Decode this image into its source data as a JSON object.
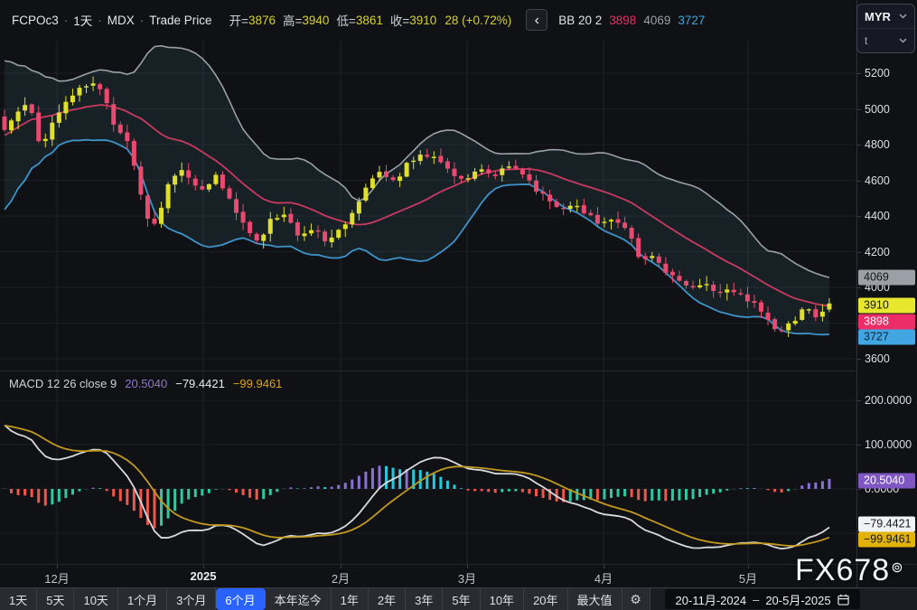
{
  "header": {
    "symbol": "FCPOc3",
    "separator": "·",
    "interval": "1天",
    "exchange": "MDX",
    "price_type": "Trade Price",
    "ohlc": {
      "open_label": "开=",
      "open": "3876",
      "high_label": "高=",
      "high": "3940",
      "low_label": "低=",
      "low": "3861",
      "close_label": "收=",
      "close": "3910",
      "change": "28 (+0.72%)"
    },
    "back_button": "‹",
    "bb": {
      "label": "BB 20 2",
      "mid": "3898",
      "upper": "4069",
      "lower": "3727"
    }
  },
  "symbol_widget": {
    "currency": "MYR",
    "unit": "t"
  },
  "price_axis": {
    "labels": [
      [
        "5200",
        81
      ],
      [
        "5000",
        121
      ],
      [
        "4800",
        160
      ],
      [
        "4600",
        200
      ],
      [
        "4400",
        239
      ],
      [
        "4200",
        279
      ],
      [
        "4000",
        318
      ],
      [
        "3800",
        358
      ],
      [
        "3600",
        397
      ]
    ],
    "badges": [
      [
        "4069",
        307,
        "#9aa0a6",
        "#14171c"
      ],
      [
        "3910",
        338,
        "#e7e72e",
        "#14171c"
      ],
      [
        "3898",
        356,
        "#ed2d68",
        "#ffffff"
      ],
      [
        "3727",
        373,
        "#41a6e1",
        "#0c2330"
      ]
    ]
  },
  "macd_panel": {
    "title": "MACD 12 26 close 9",
    "hist_value": "20.5040",
    "macd_value": "−79.4421",
    "signal_value": "−99.9461",
    "axis_labels": [
      [
        "200.0000",
        443
      ],
      [
        "100.0000",
        492
      ],
      [
        "0.0000",
        541
      ]
    ],
    "badges": [
      [
        "20.5040",
        532,
        "#7e57c2",
        "#ffffff"
      ],
      [
        "−79.4421",
        580,
        "#f1f2f4",
        "#14171c"
      ],
      [
        "−99.9461",
        597,
        "#e2b30b",
        "#14171c"
      ]
    ]
  },
  "time_axis": {
    "labels": [
      [
        "12月",
        63,
        0
      ],
      [
        "2025",
        225,
        1
      ],
      [
        "2月",
        377,
        0
      ],
      [
        "3月",
        517,
        0
      ],
      [
        "4月",
        668,
        0
      ],
      [
        "5月",
        828,
        0
      ]
    ]
  },
  "watermark": {
    "text": "FX678",
    "mark": "⊚"
  },
  "toolbar": {
    "ranges": [
      {
        "label": "1天"
      },
      {
        "label": "5天"
      },
      {
        "label": "10天"
      },
      {
        "label": "1个月"
      },
      {
        "label": "3个月"
      },
      {
        "label": "6个月",
        "active": true
      },
      {
        "label": "本年迄今"
      },
      {
        "label": "1年"
      },
      {
        "label": "2年"
      },
      {
        "label": "3年"
      },
      {
        "label": "5年"
      },
      {
        "label": "10年"
      },
      {
        "label": "20年"
      },
      {
        "label": "最大值"
      }
    ],
    "settings_icon": "⚙",
    "date_range": {
      "start": "20-11月-2024",
      "separator": "–",
      "end": "20-5月-2025"
    }
  },
  "chart_data": {
    "type": "candlestick",
    "symbol": "FCPOc3",
    "interval": "1天",
    "exchange": "MDX",
    "currency": "MYR",
    "unit": "t",
    "last_bar": {
      "open": 3876,
      "high": 3940,
      "low": 3861,
      "close": 3910,
      "change": 28,
      "change_pct": 0.72
    },
    "bollinger": {
      "period": 20,
      "stdev": 2,
      "upper_last": 4069,
      "middle_last": 3898,
      "lower_last": 3727
    },
    "macd": {
      "fast": 12,
      "slow": 26,
      "source": "close",
      "signal": 9,
      "macd_last": -79.4421,
      "signal_last": -99.9461,
      "hist_last": 20.504
    },
    "price_axis_ticks": [
      3600,
      3800,
      4000,
      4200,
      4400,
      4600,
      4800,
      5000,
      5200
    ],
    "macd_axis_ticks": [
      -100,
      0,
      100,
      200
    ],
    "months": [
      "12月",
      "2025",
      "2月",
      "3月",
      "4月",
      "5月"
    ],
    "visible_date_range": [
      "20-11月-2024",
      "20-5月-2025"
    ],
    "bar_count": 122,
    "prehistory_closes": [
      4430,
      4520,
      4470,
      4600,
      4560,
      4690,
      4650,
      4780,
      4730,
      4850,
      4900,
      4970,
      4940,
      5040,
      5000,
      5080,
      5110,
      5060,
      5130,
      5090
    ],
    "close_path_anchors": [
      [
        5,
        4880
      ],
      [
        20,
        5000
      ],
      [
        32,
        5060
      ],
      [
        45,
        4790
      ],
      [
        58,
        4930
      ],
      [
        75,
        5040
      ],
      [
        90,
        5120
      ],
      [
        105,
        5160
      ],
      [
        118,
        5040
      ],
      [
        128,
        4870
      ],
      [
        140,
        4850
      ],
      [
        152,
        4600
      ],
      [
        163,
        4380
      ],
      [
        172,
        4360
      ],
      [
        185,
        4560
      ],
      [
        200,
        4680
      ],
      [
        212,
        4600
      ],
      [
        225,
        4560
      ],
      [
        240,
        4620
      ],
      [
        255,
        4480
      ],
      [
        270,
        4360
      ],
      [
        285,
        4250
      ],
      [
        300,
        4390
      ],
      [
        315,
        4420
      ],
      [
        330,
        4300
      ],
      [
        345,
        4330
      ],
      [
        360,
        4270
      ],
      [
        377,
        4320
      ],
      [
        392,
        4450
      ],
      [
        407,
        4560
      ],
      [
        422,
        4650
      ],
      [
        437,
        4600
      ],
      [
        452,
        4700
      ],
      [
        467,
        4760
      ],
      [
        482,
        4720
      ],
      [
        497,
        4640
      ],
      [
        517,
        4600
      ],
      [
        532,
        4660
      ],
      [
        547,
        4610
      ],
      [
        562,
        4680
      ],
      [
        577,
        4640
      ],
      [
        592,
        4550
      ],
      [
        607,
        4500
      ],
      [
        622,
        4430
      ],
      [
        637,
        4480
      ],
      [
        652,
        4400
      ],
      [
        668,
        4350
      ],
      [
        682,
        4380
      ],
      [
        696,
        4290
      ],
      [
        710,
        4150
      ],
      [
        722,
        4190
      ],
      [
        736,
        4090
      ],
      [
        750,
        4060
      ],
      [
        764,
        3980
      ],
      [
        778,
        4030
      ],
      [
        792,
        3950
      ],
      [
        806,
        4010
      ],
      [
        820,
        3960
      ],
      [
        828,
        3930
      ],
      [
        840,
        3880
      ],
      [
        852,
        3790
      ],
      [
        862,
        3730
      ],
      [
        872,
        3780
      ],
      [
        882,
        3840
      ],
      [
        892,
        3880
      ],
      [
        902,
        3845
      ],
      [
        910,
        3876
      ],
      [
        918,
        3910
      ]
    ],
    "colors": {
      "up": "#dfdf2e",
      "down": "#ea4a70",
      "bb_upper": "#9aa0a6",
      "bb_mid": "#c93a62",
      "bb_lower": "#3e93c9",
      "bb_fill": "rgba(96,170,190,0.10)",
      "macd_line": "#d8dade",
      "signal_line": "#c2991f",
      "hist_pos_up": "#8a6fd4",
      "hist_pos_down": "#27c9dc",
      "hist_neg_down": "#f0564a",
      "hist_neg_up": "#2fc8a0",
      "accent": "#2962ff"
    }
  }
}
